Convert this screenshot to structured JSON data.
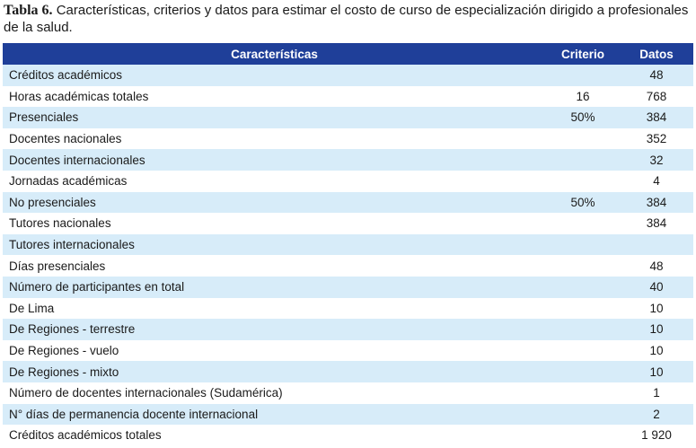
{
  "caption": {
    "label": "Tabla 6.",
    "text": "Características, criterios y datos para estimar el costo de curso de especialización dirigido a profesionales de la salud."
  },
  "table": {
    "headers": [
      "Características",
      "Criterio",
      "Datos"
    ],
    "rows": [
      [
        "Créditos académicos",
        "",
        "48"
      ],
      [
        "Horas académicas totales",
        "16",
        "768"
      ],
      [
        "Presenciales",
        "50%",
        "384"
      ],
      [
        "Docentes nacionales",
        "",
        "352"
      ],
      [
        "Docentes internacionales",
        "",
        "32"
      ],
      [
        "Jornadas académicas",
        "",
        "4"
      ],
      [
        "No presenciales",
        "50%",
        "384"
      ],
      [
        "Tutores nacionales",
        "",
        "384"
      ],
      [
        "Tutores internacionales",
        "",
        ""
      ],
      [
        "Días presenciales",
        "",
        "48"
      ],
      [
        "Número de participantes en total",
        "",
        "40"
      ],
      [
        "De Lima",
        "",
        "10"
      ],
      [
        "De Regiones - terrestre",
        "",
        "10"
      ],
      [
        "De Regiones - vuelo",
        "",
        "10"
      ],
      [
        "De Regiones - mixto",
        "",
        "10"
      ],
      [
        "Número de docentes internacionales (Sudamérica)",
        "",
        "1"
      ],
      [
        "N° días de permanencia docente internacional",
        "",
        "2"
      ],
      [
        "Créditos académicos totales",
        "",
        "1 920"
      ]
    ]
  }
}
